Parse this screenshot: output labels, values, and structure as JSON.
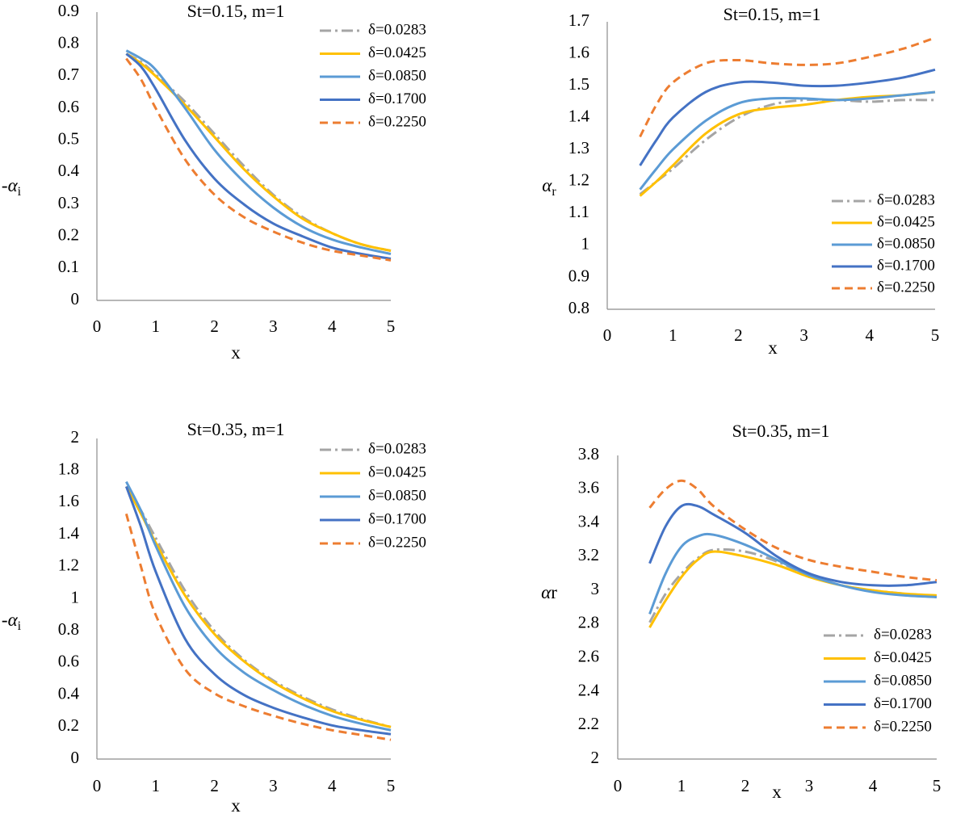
{
  "series_styles": [
    {
      "name": "δ=0.0283",
      "color": "#a5a5a5",
      "dash": "dashdot"
    },
    {
      "name": "δ=0.0425",
      "color": "#ffc000",
      "dash": "solid"
    },
    {
      "name": "δ=0.0850",
      "color": "#5b9bd5",
      "dash": "solid"
    },
    {
      "name": "δ=0.1700",
      "color": "#4472c4",
      "dash": "solid"
    },
    {
      "name": "δ=0.2250",
      "color": "#ed7d31",
      "dash": "dashed"
    }
  ],
  "chart_data": [
    {
      "type": "line",
      "title": "St=0.15, m=1",
      "xlabel": "x",
      "ylabel": "-αi",
      "xlim": [
        0,
        5
      ],
      "ylim": [
        0,
        0.9
      ],
      "xticks": [
        "0",
        "1",
        "2",
        "3",
        "4",
        "5"
      ],
      "yticks": [
        "0",
        "0.1",
        "0.2",
        "0.3",
        "0.4",
        "0.5",
        "0.6",
        "0.7",
        "0.8",
        "0.9"
      ],
      "legend_position": "top-right",
      "x": [
        0.5,
        0.75,
        1,
        1.5,
        2,
        2.5,
        3,
        3.5,
        4,
        4.5,
        5
      ],
      "series": [
        {
          "name": "δ=0.0283",
          "values": [
            0.77,
            0.745,
            0.705,
            0.62,
            0.52,
            0.42,
            0.33,
            0.26,
            0.21,
            0.175,
            0.155
          ]
        },
        {
          "name": "δ=0.0425",
          "values": [
            0.77,
            0.74,
            0.7,
            0.61,
            0.51,
            0.41,
            0.325,
            0.255,
            0.21,
            0.175,
            0.155
          ]
        },
        {
          "name": "δ=0.0850",
          "values": [
            0.78,
            0.755,
            0.72,
            0.6,
            0.47,
            0.37,
            0.29,
            0.23,
            0.19,
            0.165,
            0.145
          ]
        },
        {
          "name": "δ=0.1700",
          "values": [
            0.77,
            0.73,
            0.66,
            0.5,
            0.38,
            0.3,
            0.24,
            0.2,
            0.165,
            0.145,
            0.13
          ]
        },
        {
          "name": "δ=0.2250",
          "values": [
            0.755,
            0.69,
            0.6,
            0.44,
            0.33,
            0.26,
            0.215,
            0.18,
            0.155,
            0.14,
            0.125
          ]
        }
      ]
    },
    {
      "type": "line",
      "title": "St=0.15, m=1",
      "xlabel": "x",
      "ylabel": "αr",
      "xlim": [
        0,
        5
      ],
      "ylim": [
        0.8,
        1.7
      ],
      "xticks": [
        "0",
        "1",
        "2",
        "3",
        "4",
        "5"
      ],
      "yticks": [
        "0.8",
        "0.9",
        "1",
        "1.1",
        "1.2",
        "1.3",
        "1.4",
        "1.5",
        "1.6",
        "1.7"
      ],
      "legend_position": "bottom-right",
      "x": [
        0.5,
        0.75,
        1,
        1.5,
        2,
        2.5,
        3,
        3.5,
        4,
        4.5,
        5
      ],
      "series": [
        {
          "name": "δ=0.0283",
          "values": [
            1.16,
            1.2,
            1.24,
            1.33,
            1.4,
            1.44,
            1.455,
            1.455,
            1.45,
            1.455,
            1.455
          ]
        },
        {
          "name": "δ=0.0425",
          "values": [
            1.155,
            1.2,
            1.25,
            1.35,
            1.41,
            1.43,
            1.44,
            1.455,
            1.465,
            1.47,
            1.48
          ]
        },
        {
          "name": "δ=0.0850",
          "values": [
            1.175,
            1.24,
            1.3,
            1.39,
            1.445,
            1.46,
            1.46,
            1.455,
            1.46,
            1.47,
            1.48
          ]
        },
        {
          "name": "δ=0.1700",
          "values": [
            1.25,
            1.33,
            1.4,
            1.48,
            1.51,
            1.51,
            1.5,
            1.5,
            1.51,
            1.525,
            1.55
          ]
        },
        {
          "name": "δ=0.2250",
          "values": [
            1.34,
            1.44,
            1.51,
            1.57,
            1.58,
            1.57,
            1.565,
            1.57,
            1.59,
            1.615,
            1.65
          ]
        }
      ]
    },
    {
      "type": "line",
      "title": "St=0.35, m=1",
      "xlabel": "x",
      "ylabel": "-αi",
      "xlim": [
        0,
        5
      ],
      "ylim": [
        0,
        2
      ],
      "xticks": [
        "0",
        "1",
        "2",
        "3",
        "4",
        "5"
      ],
      "yticks": [
        "0",
        "0.2",
        "0.4",
        "0.6",
        "0.8",
        "1",
        "1.2",
        "1.4",
        "1.6",
        "1.8",
        "2"
      ],
      "legend_position": "top-right",
      "x": [
        0.5,
        0.75,
        1,
        1.5,
        2,
        2.5,
        3,
        3.5,
        4,
        4.5,
        5
      ],
      "series": [
        {
          "name": "δ=0.0283",
          "values": [
            1.7,
            1.55,
            1.38,
            1.05,
            0.8,
            0.62,
            0.49,
            0.39,
            0.31,
            0.25,
            0.2
          ]
        },
        {
          "name": "δ=0.0425",
          "values": [
            1.7,
            1.53,
            1.35,
            1.02,
            0.78,
            0.61,
            0.48,
            0.38,
            0.3,
            0.245,
            0.2
          ]
        },
        {
          "name": "δ=0.0850",
          "values": [
            1.73,
            1.55,
            1.33,
            0.95,
            0.7,
            0.54,
            0.43,
            0.34,
            0.27,
            0.22,
            0.18
          ]
        },
        {
          "name": "δ=0.1700",
          "values": [
            1.7,
            1.45,
            1.17,
            0.75,
            0.53,
            0.4,
            0.32,
            0.26,
            0.21,
            0.18,
            0.155
          ]
        },
        {
          "name": "δ=0.2250",
          "values": [
            1.53,
            1.2,
            0.9,
            0.56,
            0.41,
            0.33,
            0.27,
            0.22,
            0.18,
            0.15,
            0.12
          ]
        }
      ]
    },
    {
      "type": "line",
      "title": "St=0.35, m=1",
      "xlabel": "x",
      "ylabel": "αr",
      "xlim": [
        0,
        5
      ],
      "ylim": [
        2,
        3.8
      ],
      "xticks": [
        "0",
        "1",
        "2",
        "3",
        "4",
        "5"
      ],
      "yticks": [
        "2",
        "2.2",
        "2.4",
        "2.6",
        "2.8",
        "3",
        "3.2",
        "3.4",
        "3.6",
        "3.8"
      ],
      "legend_position": "bottom-right",
      "x": [
        0.5,
        0.75,
        1,
        1.25,
        1.5,
        2,
        2.5,
        3,
        3.5,
        4,
        4.5,
        5
      ],
      "series": [
        {
          "name": "δ=0.0283",
          "values": [
            2.81,
            2.98,
            3.1,
            3.19,
            3.24,
            3.23,
            3.17,
            3.09,
            3.03,
            3.0,
            2.98,
            2.96
          ]
        },
        {
          "name": "δ=0.0425",
          "values": [
            2.78,
            2.94,
            3.08,
            3.18,
            3.23,
            3.2,
            3.15,
            3.08,
            3.03,
            3.0,
            2.98,
            2.97
          ]
        },
        {
          "name": "δ=0.0850",
          "values": [
            2.86,
            3.1,
            3.26,
            3.32,
            3.33,
            3.27,
            3.18,
            3.09,
            3.03,
            2.99,
            2.97,
            2.96
          ]
        },
        {
          "name": "δ=0.1700",
          "values": [
            3.16,
            3.38,
            3.5,
            3.5,
            3.45,
            3.34,
            3.2,
            3.1,
            3.05,
            3.03,
            3.03,
            3.05
          ]
        },
        {
          "name": "δ=0.2250",
          "values": [
            3.49,
            3.6,
            3.65,
            3.6,
            3.5,
            3.36,
            3.25,
            3.18,
            3.14,
            3.11,
            3.08,
            3.06
          ]
        }
      ]
    }
  ]
}
